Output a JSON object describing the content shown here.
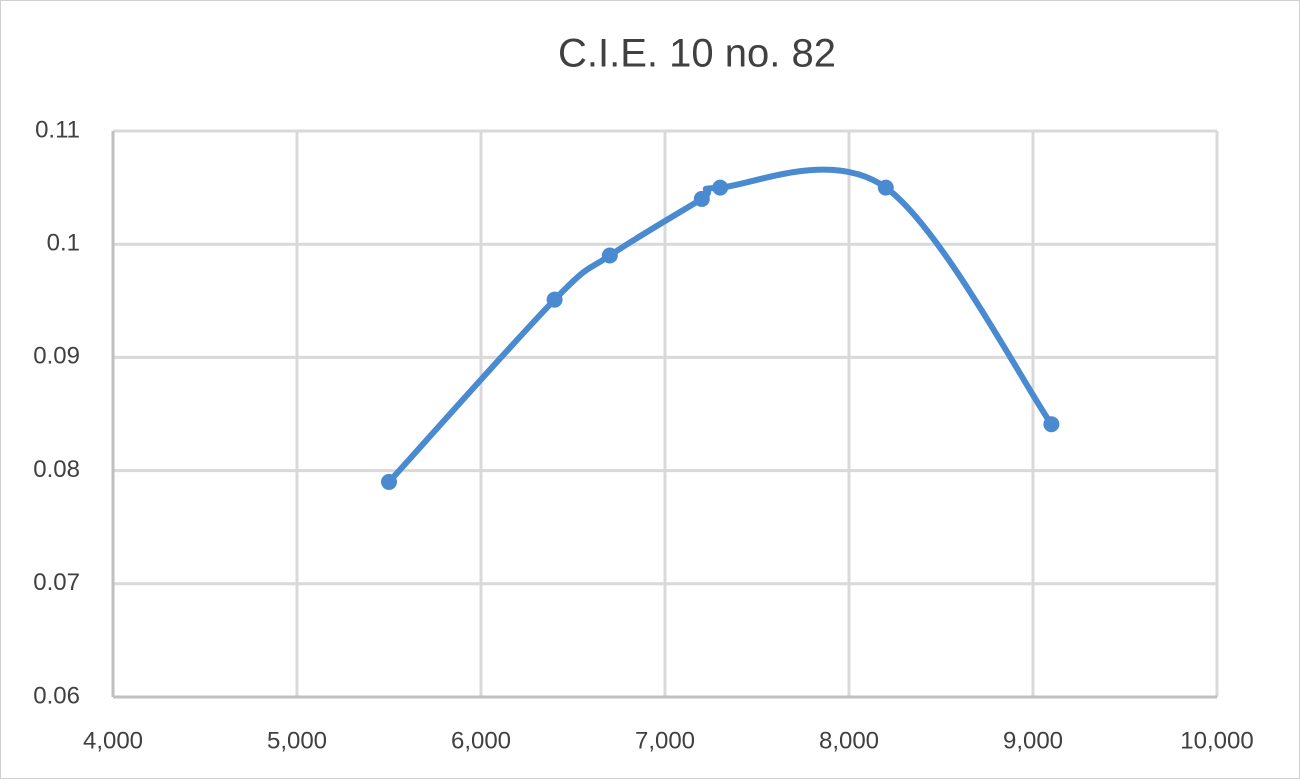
{
  "chart_data": {
    "type": "scatter",
    "title": "C.I.E. 10 no. 82",
    "x": [
      5500,
      6400,
      6700,
      7200,
      7300,
      8200,
      9100
    ],
    "series": [
      {
        "color": "#4a8ad0",
        "values": [
          0.079,
          0.0951,
          0.099,
          0.104,
          0.105,
          0.105,
          0.0841
        ]
      }
    ],
    "xlim": [
      4000,
      10000
    ],
    "xticks": [
      {
        "value": 4000,
        "label": "4,000"
      },
      {
        "value": 5000,
        "label": "5,000"
      },
      {
        "value": 6000,
        "label": "6,000"
      },
      {
        "value": 7000,
        "label": "7,000"
      },
      {
        "value": 8000,
        "label": "8,000"
      },
      {
        "value": 9000,
        "label": "9,000"
      },
      {
        "value": 10000,
        "label": "10,000"
      }
    ],
    "ylim": [
      0.06,
      0.11
    ],
    "yticks": [
      0.06,
      0.07,
      0.08,
      0.09,
      0.1,
      0.11
    ],
    "grid": true,
    "smooth": true
  }
}
